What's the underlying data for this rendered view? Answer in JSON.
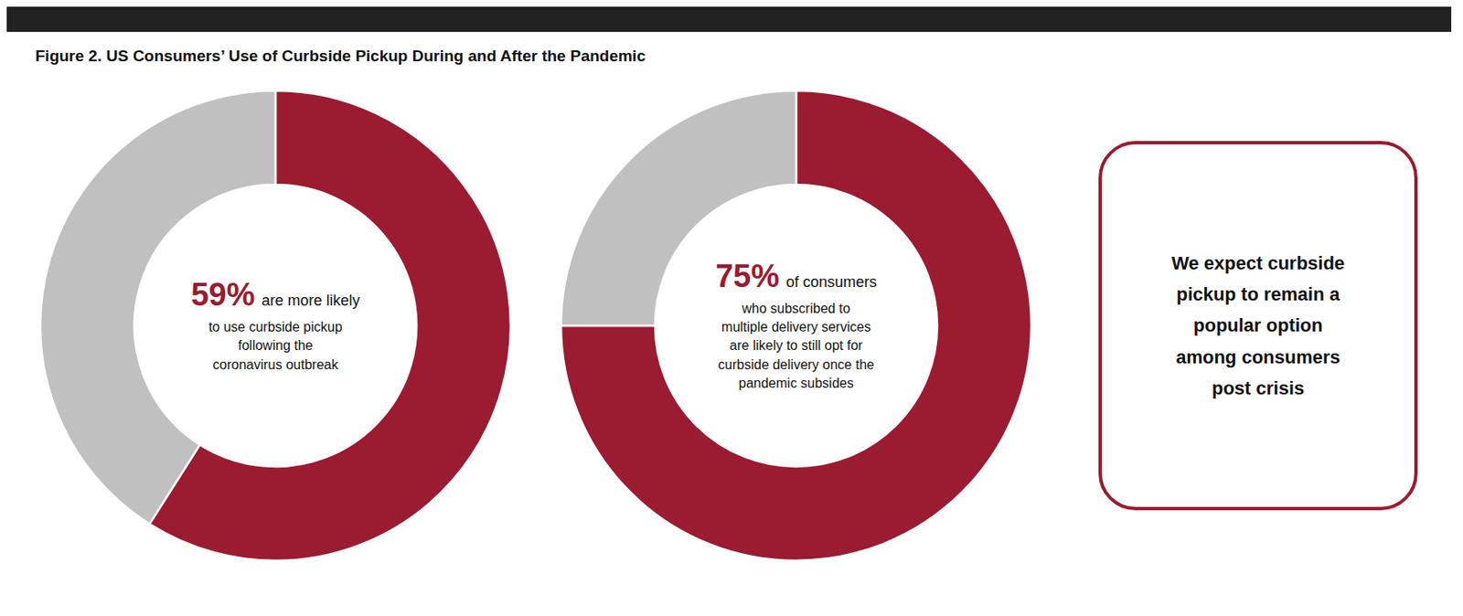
{
  "title": "Figure 2. US Consumers’ Use of Curbside Pickup During and After the Pandemic",
  "chart_data": [
    {
      "type": "pie",
      "values": [
        59,
        41
      ],
      "colors": [
        "#9B1B30",
        "#C0C0C0"
      ],
      "annotations": [
        "59%",
        "are more likely",
        "to use curbside pickup\nfollowing the\ncoronavirus outbreak"
      ]
    },
    {
      "type": "pie",
      "values": [
        75,
        25
      ],
      "colors": [
        "#9B1B30",
        "#C0C0C0"
      ],
      "annotations": [
        "75%",
        "of consumers",
        "who subscribed to\nmultiple delivery services\nare likely to still opt for\ncurbside delivery once the\npandemic subsides"
      ]
    }
  ],
  "annotations": [
    "We expect curbside\npickup to remain a\npopular option\namong consumers\npost crisis"
  ]
}
